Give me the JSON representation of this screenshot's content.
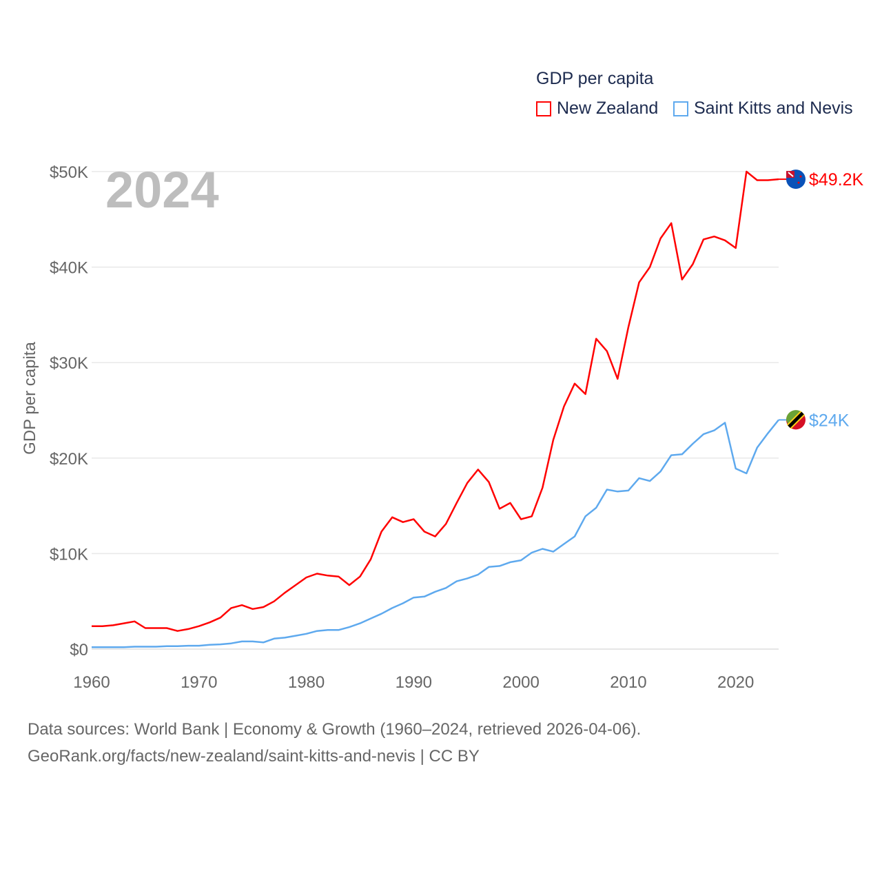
{
  "chart_data": {
    "type": "line",
    "title": "GDP per capita",
    "ylabel": "GDP per capita",
    "xlabel": "",
    "year_label": "2024",
    "xlim": [
      1960,
      2024
    ],
    "ylim": [
      0,
      50000
    ],
    "x_ticks": [
      "1960",
      "1970",
      "1980",
      "1990",
      "2000",
      "2010",
      "2020"
    ],
    "y_ticks": [
      "$0",
      "$10K",
      "$20K",
      "$30K",
      "$40K",
      "$50K"
    ],
    "grid": true,
    "legend_placement": "top-right",
    "x": [
      1960,
      1961,
      1962,
      1963,
      1964,
      1965,
      1966,
      1967,
      1968,
      1969,
      1970,
      1971,
      1972,
      1973,
      1974,
      1975,
      1976,
      1977,
      1978,
      1979,
      1980,
      1981,
      1982,
      1983,
      1984,
      1985,
      1986,
      1987,
      1988,
      1989,
      1990,
      1991,
      1992,
      1993,
      1994,
      1995,
      1996,
      1997,
      1998,
      1999,
      2000,
      2001,
      2002,
      2003,
      2004,
      2005,
      2006,
      2007,
      2008,
      2009,
      2010,
      2011,
      2012,
      2013,
      2014,
      2015,
      2016,
      2017,
      2018,
      2019,
      2020,
      2021,
      2022,
      2023,
      2024
    ],
    "series": [
      {
        "name": "New Zealand",
        "color": "#ff0000",
        "end_label": "$49.2K",
        "flag": "new-zealand-flag",
        "values": [
          2.4,
          2.4,
          2.5,
          2.7,
          2.9,
          2.2,
          2.2,
          2.2,
          1.9,
          2.1,
          2.4,
          2.8,
          3.3,
          4.3,
          4.6,
          4.2,
          4.4,
          5.0,
          5.9,
          6.7,
          7.5,
          7.9,
          7.7,
          7.6,
          6.7,
          7.6,
          9.4,
          12.3,
          13.8,
          13.3,
          13.6,
          12.3,
          11.8,
          13.1,
          15.3,
          17.4,
          18.8,
          17.5,
          14.7,
          15.3,
          13.6,
          13.9,
          16.9,
          21.9,
          25.4,
          27.8,
          26.7,
          32.5,
          31.2,
          28.3,
          33.7,
          38.4,
          40.0,
          43.0,
          44.6,
          38.7,
          40.3,
          42.9,
          43.2,
          42.8,
          42.0,
          50.0,
          49.1,
          49.1,
          49.2
        ]
      },
      {
        "name": "Saint Kitts and Nevis",
        "color": "#5ea9ee",
        "end_label": "$24K",
        "flag": "saint-kitts-and-nevis-flag",
        "values": [
          0.2,
          0.2,
          0.2,
          0.2,
          0.25,
          0.25,
          0.25,
          0.3,
          0.3,
          0.35,
          0.35,
          0.45,
          0.5,
          0.6,
          0.8,
          0.8,
          0.7,
          1.1,
          1.2,
          1.4,
          1.6,
          1.9,
          2.0,
          2.0,
          2.3,
          2.7,
          3.2,
          3.7,
          4.3,
          4.8,
          5.4,
          5.5,
          6.0,
          6.4,
          7.1,
          7.4,
          7.8,
          8.6,
          8.7,
          9.1,
          9.3,
          10.1,
          10.5,
          10.2,
          11.0,
          11.8,
          13.9,
          14.8,
          16.7,
          16.5,
          16.6,
          17.9,
          17.6,
          18.6,
          20.3,
          20.4,
          21.5,
          22.5,
          22.9,
          23.7,
          18.9,
          18.4,
          21.1,
          22.6,
          24.0
        ]
      }
    ],
    "value_unit": "thousand USD"
  },
  "legend": {
    "title": "GDP per capita",
    "items": [
      "New Zealand",
      "Saint Kitts and Nevis"
    ]
  },
  "footer": {
    "line1": "Data sources: World Bank | Economy & Growth (1960–2024, retrieved 2026-04-06).",
    "line2": "GeoRank.org/facts/new-zealand/saint-kitts-and-nevis | CC BY"
  }
}
